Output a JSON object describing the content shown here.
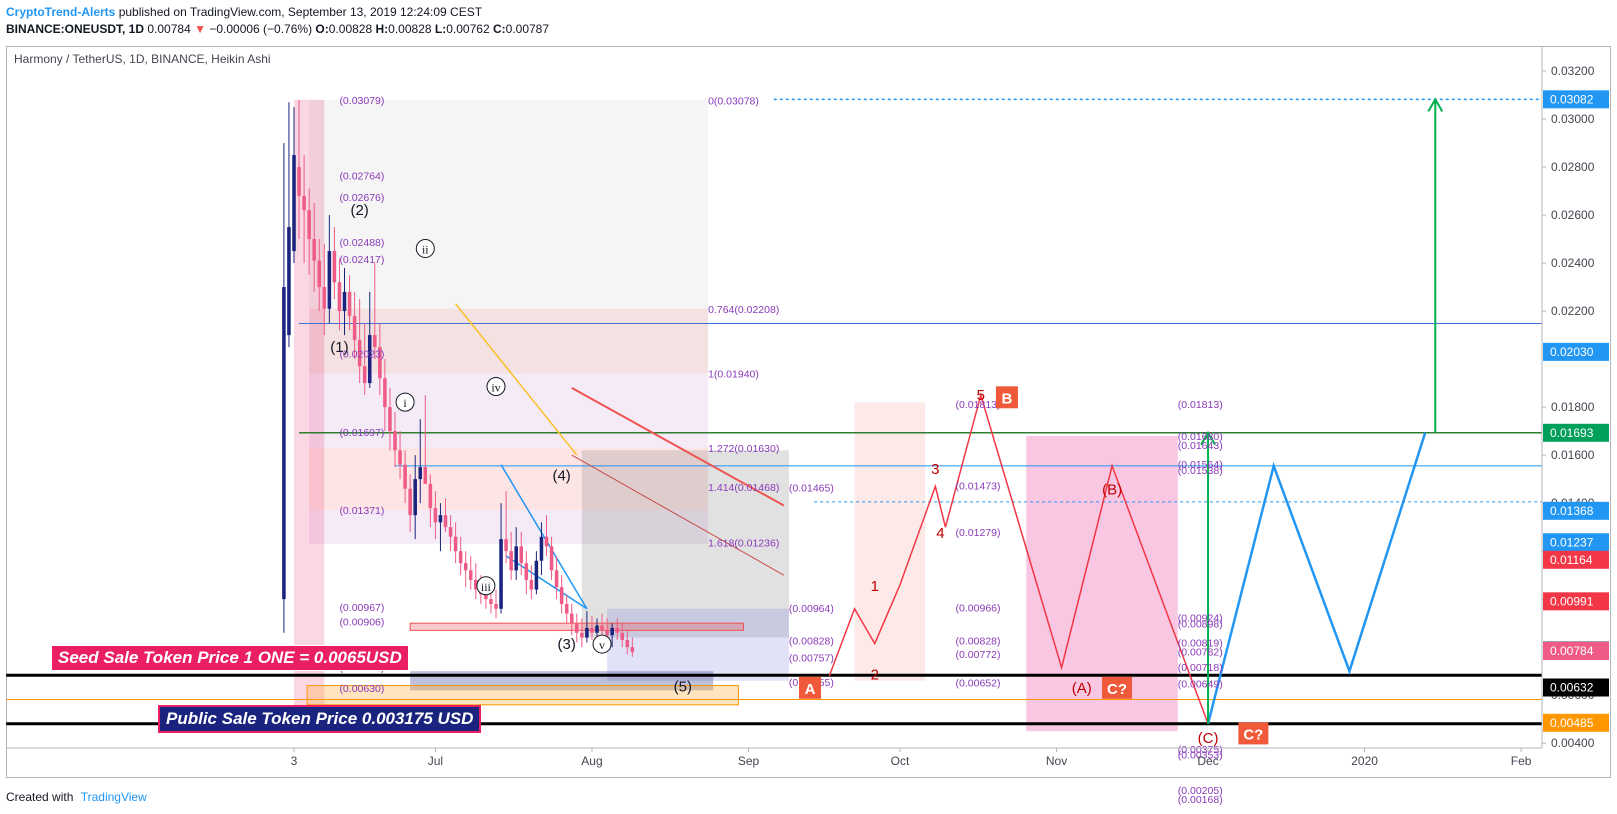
{
  "header": {
    "author": "CryptoTrend-Alerts",
    "published": "published on TradingView.com, September 13, 2019 12:24:09 CEST",
    "symbol": "BINANCE:ONEUSDT, 1D",
    "last": "0.00784",
    "change": "−0.00006 (−0.76%)",
    "ohlc": {
      "o_label": "O:",
      "o": "0.00828",
      "h_label": "H:",
      "h": "0.00828",
      "l_label": "L:",
      "l": "0.00762",
      "c_label": "C:",
      "c": "0.00787"
    }
  },
  "legend": {
    "title": "Harmony / TetherUS, 1D, BINANCE, Heikin Ashi"
  },
  "footer": {
    "created_with": "Created with",
    "brand": "TradingView"
  },
  "banners": {
    "seed": "Seed Sale Token Price 1 ONE = 0.0065USD",
    "public": "Public Sale Token Price 0.003175 USD"
  },
  "colors": {
    "up": "#1a237e",
    "down": "#ef5b86",
    "projection_red": "#f23645",
    "projection_blue": "#2196f3",
    "projection_green": "#00b050",
    "fib_pink": "#e91e8c"
  },
  "chart_data": {
    "type": "candlestick",
    "title": "Harmony / TetherUS, 1D, BINANCE, Heikin Ashi",
    "yaxis": {
      "ticks": [
        "0.03200",
        "0.03000",
        "0.02800",
        "0.02600",
        "0.02400",
        "0.02200",
        "0.01800",
        "0.01600",
        "0.01400",
        "0.01200",
        "0.01000",
        "0.00800",
        "0.00600",
        "0.00400"
      ],
      "ylim": [
        0.0038,
        0.033
      ],
      "price_labels": [
        {
          "text": "0.03082",
          "v": 0.03082,
          "bg": "#2196f3"
        },
        {
          "text": "0.02030",
          "v": 0.0203,
          "bg": "#2196f3"
        },
        {
          "text": "0.01693",
          "v": 0.01693,
          "bg": "#00a05a"
        },
        {
          "text": "0.01368",
          "v": 0.01368,
          "bg": "#2196f3"
        },
        {
          "text": "0.01237",
          "v": 0.01237,
          "bg": "#2196f3"
        },
        {
          "text": "0.01164",
          "v": 0.01164,
          "bg": "#f23645"
        },
        {
          "text": "0.00991",
          "v": 0.00991,
          "bg": "#f23645"
        },
        {
          "text": "0.00787",
          "v": 0.00787,
          "bg": "#787b86"
        },
        {
          "text": "0.00784",
          "v": 0.00784,
          "bg": "#ef5b86"
        },
        {
          "text": "0.00632",
          "v": 0.00632,
          "bg": "#000000"
        },
        {
          "text": "0.00485",
          "v": 0.00485,
          "bg": "#ff9800"
        }
      ]
    },
    "xaxis": {
      "ticks": [
        {
          "label": "3",
          "d": 0
        },
        {
          "label": "Jul",
          "d": 28
        },
        {
          "label": "Aug",
          "d": 59
        },
        {
          "label": "Sep",
          "d": 90
        },
        {
          "label": "Oct",
          "d": 120
        },
        {
          "label": "Nov",
          "d": 151
        },
        {
          "label": "Dec",
          "d": 181
        },
        {
          "label": "2020",
          "d": 212
        },
        {
          "label": "Feb",
          "d": 243
        }
      ]
    },
    "hlines": [
      {
        "v": 0.01693,
        "color": "#2e7d32",
        "w": 1.5,
        "x0": 1,
        "x1": 251
      },
      {
        "v": 0.02148,
        "color": "#3f6fd8",
        "w": 1,
        "x0": 1,
        "x1": 251
      },
      {
        "v": 0.01555,
        "color": "#2196f3",
        "w": 1,
        "x0": 20,
        "x1": 251
      },
      {
        "v": 0.01405,
        "color": "#2196f3",
        "w": 1,
        "x0": 103,
        "x1": 251,
        "dash": true
      },
      {
        "v": 0.00683,
        "color": "#000000",
        "w": 3,
        "x0": -57,
        "x1": 251
      },
      {
        "v": 0.00582,
        "color": "#ff9800",
        "w": 1,
        "x0": -57,
        "x1": 251
      },
      {
        "v": 0.00481,
        "color": "#000000",
        "w": 3,
        "x0": -57,
        "x1": 251
      },
      {
        "v": 0.03082,
        "color": "#2196f3",
        "w": 1.5,
        "x0": 95,
        "x1": 251,
        "dash": true
      }
    ],
    "fib_labels": [
      {
        "text": "(0.03079)",
        "v": 0.03079,
        "d": 9
      },
      {
        "text": "(0.02764)",
        "v": 0.02764,
        "d": 9
      },
      {
        "text": "(0.02676)",
        "v": 0.02676,
        "d": 9
      },
      {
        "text": "(0.02488)",
        "v": 0.02488,
        "d": 9
      },
      {
        "text": "(0.02417)",
        "v": 0.02417,
        "d": 9
      },
      {
        "text": "(0.02023)",
        "v": 0.02023,
        "d": 9
      },
      {
        "text": "(0.01697)",
        "v": 0.01697,
        "d": 9
      },
      {
        "text": "(0.01371)",
        "v": 0.01371,
        "d": 9
      },
      {
        "text": "(0.00967)",
        "v": 0.00967,
        "d": 9
      },
      {
        "text": "(0.00906)",
        "v": 0.00906,
        "d": 9
      },
      {
        "text": "(0.00718)",
        "v": 0.00718,
        "d": 9
      },
      {
        "text": "(0.00630)",
        "v": 0.0063,
        "d": 9
      },
      {
        "text": "0(0.03078)",
        "v": 0.03078,
        "d": 82
      },
      {
        "text": "0.764(0.02208)",
        "v": 0.02208,
        "d": 82
      },
      {
        "text": "1(0.01940)",
        "v": 0.0194,
        "d": 82
      },
      {
        "text": "1.272(0.01630)",
        "v": 0.0163,
        "d": 82
      },
      {
        "text": "1.414(0.01468)",
        "v": 0.01468,
        "d": 82
      },
      {
        "text": "(0.01465)",
        "v": 0.01465,
        "d": 98
      },
      {
        "text": "1.618(0.01236)",
        "v": 0.01236,
        "d": 82
      },
      {
        "text": "(0.00964)",
        "v": 0.00964,
        "d": 98
      },
      {
        "text": "(0.00828)",
        "v": 0.00828,
        "d": 98
      },
      {
        "text": "(0.00757)",
        "v": 0.00757,
        "d": 98
      },
      {
        "text": "(0.00655)",
        "v": 0.00655,
        "d": 98
      },
      {
        "text": "(0.01813)",
        "v": 0.01813,
        "d": 131
      },
      {
        "text": "(0.01473)",
        "v": 0.01473,
        "d": 131
      },
      {
        "text": "(0.01279)",
        "v": 0.01279,
        "d": 131
      },
      {
        "text": "(0.00966)",
        "v": 0.00966,
        "d": 131
      },
      {
        "text": "(0.00828)",
        "v": 0.00828,
        "d": 131
      },
      {
        "text": "(0.00772)",
        "v": 0.00772,
        "d": 131
      },
      {
        "text": "(0.00652)",
        "v": 0.00652,
        "d": 131
      },
      {
        "text": "(0.01813)",
        "v": 0.01813,
        "d": 175
      },
      {
        "text": "(0.01680)",
        "v": 0.0168,
        "d": 175
      },
      {
        "text": "(0.01643)",
        "v": 0.01643,
        "d": 175
      },
      {
        "text": "(0.01564)",
        "v": 0.01564,
        "d": 175
      },
      {
        "text": "(0.01538)",
        "v": 0.01538,
        "d": 175
      },
      {
        "text": "(0.00924)",
        "v": 0.00924,
        "d": 175
      },
      {
        "text": "(0.00898)",
        "v": 0.00898,
        "d": 175
      },
      {
        "text": "(0.00819)",
        "v": 0.00819,
        "d": 175
      },
      {
        "text": "(0.00782)",
        "v": 0.00782,
        "d": 175
      },
      {
        "text": "(0.00718)",
        "v": 0.00718,
        "d": 175
      },
      {
        "text": "(0.00649)",
        "v": 0.00649,
        "d": 175
      },
      {
        "text": "(0.00375)",
        "v": 0.00375,
        "d": 175
      },
      {
        "text": "(0.00353)",
        "v": 0.00353,
        "d": 175
      },
      {
        "text": "(0.00205)",
        "v": 0.00205,
        "d": 175
      },
      {
        "text": "(0.00168)",
        "v": 0.00168,
        "d": 175
      }
    ],
    "wave_labels": [
      {
        "text": "(1)",
        "d": 9,
        "v": 0.0203,
        "color": "#131722"
      },
      {
        "text": "(2)",
        "d": 13,
        "v": 0.026,
        "color": "#131722"
      },
      {
        "text": "(4)",
        "d": 53,
        "v": 0.01495,
        "color": "#131722"
      },
      {
        "text": "(3)",
        "d": 54,
        "v": 0.00792,
        "color": "#131722"
      },
      {
        "text": "(5)",
        "d": 77,
        "v": 0.00615,
        "color": "#131722"
      },
      {
        "text": "1",
        "d": 115,
        "v": 0.01035,
        "color": "#c00000"
      },
      {
        "text": "2",
        "d": 115,
        "v": 0.00665,
        "color": "#c00000"
      },
      {
        "text": "3",
        "d": 127,
        "v": 0.01522,
        "color": "#c00000"
      },
      {
        "text": "4",
        "d": 128,
        "v": 0.01255,
        "color": "#c00000"
      },
      {
        "text": "5",
        "d": 136,
        "v": 0.0183,
        "color": "#c00000"
      },
      {
        "text": "(B)",
        "d": 162,
        "v": 0.01435,
        "color": "#c00000"
      },
      {
        "text": "(A)",
        "d": 156,
        "v": 0.0061,
        "color": "#c00000"
      },
      {
        "text": "(C)",
        "d": 181,
        "v": 0.004,
        "color": "#c00000"
      }
    ],
    "circled_labels": [
      {
        "text": "i",
        "d": 22,
        "v": 0.018
      },
      {
        "text": "ii",
        "d": 26,
        "v": 0.0244
      },
      {
        "text": "iii",
        "d": 38,
        "v": 0.01035
      },
      {
        "text": "iv",
        "d": 40,
        "v": 0.01865
      },
      {
        "text": "v",
        "d": 61,
        "v": 0.00792
      }
    ],
    "box_labels": [
      {
        "text": "A",
        "d": 100,
        "v": 0.0061,
        "bg": "#f05a3a"
      },
      {
        "text": "B",
        "d": 139,
        "v": 0.0182,
        "bg": "#f05a3a"
      },
      {
        "text": "C?",
        "d": 160,
        "v": 0.0061,
        "bg": "#f05a3a"
      },
      {
        "text": "C?",
        "d": 187,
        "v": 0.0042,
        "bg": "#f05a3a"
      }
    ],
    "projection_red": [
      [
        106,
        0.0068
      ],
      [
        111,
        0.0096
      ],
      [
        115,
        0.00815
      ],
      [
        120,
        0.0106
      ],
      [
        127,
        0.0147
      ],
      [
        129,
        0.013
      ],
      [
        136,
        0.0185
      ],
      [
        152,
        0.00715
      ],
      [
        162,
        0.01555
      ],
      [
        181,
        0.00481
      ]
    ],
    "projection_blue": [
      [
        181,
        0.00481
      ],
      [
        194,
        0.01555
      ],
      [
        209,
        0.007
      ],
      [
        224,
        0.01693
      ]
    ],
    "projection_green_arrows": [
      [
        181,
        0.00481,
        0.01693
      ],
      [
        226,
        0.01693,
        0.03082
      ]
    ],
    "candles_note": "Heikin Ashi daily candles, ONE/USDT, Jun 1 – Sep 13 2019",
    "candles": [
      {
        "o": 0.01,
        "h": 0.029,
        "l": 0.0086,
        "c": 0.023
      },
      {
        "o": 0.021,
        "h": 0.0307,
        "l": 0.0205,
        "c": 0.0255
      },
      {
        "o": 0.0245,
        "h": 0.0305,
        "l": 0.024,
        "c": 0.0285
      },
      {
        "o": 0.028,
        "h": 0.0308,
        "l": 0.025,
        "c": 0.0268
      },
      {
        "o": 0.0268,
        "h": 0.0285,
        "l": 0.024,
        "c": 0.0262
      },
      {
        "o": 0.0262,
        "h": 0.0271,
        "l": 0.0235,
        "c": 0.025
      },
      {
        "o": 0.025,
        "h": 0.0265,
        "l": 0.0228,
        "c": 0.0241
      },
      {
        "o": 0.0241,
        "h": 0.025,
        "l": 0.022,
        "c": 0.023
      },
      {
        "o": 0.023,
        "h": 0.0248,
        "l": 0.021,
        "c": 0.0221
      },
      {
        "o": 0.0221,
        "h": 0.026,
        "l": 0.0215,
        "c": 0.0245
      },
      {
        "o": 0.0245,
        "h": 0.0255,
        "l": 0.0225,
        "c": 0.0232
      },
      {
        "o": 0.0232,
        "h": 0.0242,
        "l": 0.0212,
        "c": 0.022
      },
      {
        "o": 0.022,
        "h": 0.0238,
        "l": 0.021,
        "c": 0.0228
      },
      {
        "o": 0.0228,
        "h": 0.0235,
        "l": 0.0212,
        "c": 0.0218
      },
      {
        "o": 0.0218,
        "h": 0.0228,
        "l": 0.02,
        "c": 0.0208
      },
      {
        "o": 0.0208,
        "h": 0.0225,
        "l": 0.019,
        "c": 0.0197
      },
      {
        "o": 0.0197,
        "h": 0.0215,
        "l": 0.0185,
        "c": 0.019
      },
      {
        "o": 0.019,
        "h": 0.0228,
        "l": 0.0188,
        "c": 0.021
      },
      {
        "o": 0.021,
        "h": 0.024,
        "l": 0.02,
        "c": 0.0205
      },
      {
        "o": 0.0205,
        "h": 0.0215,
        "l": 0.0185,
        "c": 0.0192
      },
      {
        "o": 0.0192,
        "h": 0.02,
        "l": 0.017,
        "c": 0.018
      },
      {
        "o": 0.018,
        "h": 0.0188,
        "l": 0.0162,
        "c": 0.017
      },
      {
        "o": 0.017,
        "h": 0.0178,
        "l": 0.0155,
        "c": 0.0162
      },
      {
        "o": 0.0162,
        "h": 0.017,
        "l": 0.015,
        "c": 0.0156
      },
      {
        "o": 0.0156,
        "h": 0.0162,
        "l": 0.014,
        "c": 0.0146
      },
      {
        "o": 0.0146,
        "h": 0.0152,
        "l": 0.0128,
        "c": 0.0135
      },
      {
        "o": 0.0135,
        "h": 0.016,
        "l": 0.0125,
        "c": 0.015
      },
      {
        "o": 0.015,
        "h": 0.0175,
        "l": 0.014,
        "c": 0.0155
      },
      {
        "o": 0.0155,
        "h": 0.0185,
        "l": 0.015,
        "c": 0.0148
      },
      {
        "o": 0.0148,
        "h": 0.0152,
        "l": 0.013,
        "c": 0.0138
      },
      {
        "o": 0.0138,
        "h": 0.0145,
        "l": 0.0125,
        "c": 0.0132
      },
      {
        "o": 0.0132,
        "h": 0.014,
        "l": 0.012,
        "c": 0.0135
      },
      {
        "o": 0.0135,
        "h": 0.0142,
        "l": 0.0128,
        "c": 0.013
      },
      {
        "o": 0.013,
        "h": 0.0135,
        "l": 0.012,
        "c": 0.0126
      },
      {
        "o": 0.0126,
        "h": 0.0132,
        "l": 0.0115,
        "c": 0.012
      },
      {
        "o": 0.012,
        "h": 0.0126,
        "l": 0.011,
        "c": 0.0115
      },
      {
        "o": 0.0115,
        "h": 0.012,
        "l": 0.0105,
        "c": 0.0112
      },
      {
        "o": 0.0112,
        "h": 0.0118,
        "l": 0.0104,
        "c": 0.0108
      },
      {
        "o": 0.0108,
        "h": 0.0115,
        "l": 0.01,
        "c": 0.0104
      },
      {
        "o": 0.0104,
        "h": 0.011,
        "l": 0.0098,
        "c": 0.0102
      },
      {
        "o": 0.0102,
        "h": 0.0108,
        "l": 0.0096,
        "c": 0.01
      },
      {
        "o": 0.01,
        "h": 0.0105,
        "l": 0.0094,
        "c": 0.0098
      },
      {
        "o": 0.0098,
        "h": 0.0104,
        "l": 0.0092,
        "c": 0.0096
      },
      {
        "o": 0.0096,
        "h": 0.014,
        "l": 0.0094,
        "c": 0.0125
      },
      {
        "o": 0.0125,
        "h": 0.0145,
        "l": 0.0115,
        "c": 0.012
      },
      {
        "o": 0.012,
        "h": 0.0128,
        "l": 0.0108,
        "c": 0.0112
      },
      {
        "o": 0.0112,
        "h": 0.013,
        "l": 0.0108,
        "c": 0.0122
      },
      {
        "o": 0.0122,
        "h": 0.0128,
        "l": 0.011,
        "c": 0.0115
      },
      {
        "o": 0.0115,
        "h": 0.012,
        "l": 0.0102,
        "c": 0.0108
      },
      {
        "o": 0.0108,
        "h": 0.0114,
        "l": 0.01,
        "c": 0.0104
      },
      {
        "o": 0.0104,
        "h": 0.012,
        "l": 0.0102,
        "c": 0.0116
      },
      {
        "o": 0.0116,
        "h": 0.0132,
        "l": 0.011,
        "c": 0.0126
      },
      {
        "o": 0.0126,
        "h": 0.0135,
        "l": 0.0118,
        "c": 0.0122
      },
      {
        "o": 0.0122,
        "h": 0.0126,
        "l": 0.0108,
        "c": 0.0112
      },
      {
        "o": 0.0112,
        "h": 0.0118,
        "l": 0.01,
        "c": 0.0105
      },
      {
        "o": 0.0105,
        "h": 0.011,
        "l": 0.0094,
        "c": 0.0098
      },
      {
        "o": 0.0098,
        "h": 0.0102,
        "l": 0.009,
        "c": 0.0094
      },
      {
        "o": 0.0094,
        "h": 0.0098,
        "l": 0.0085,
        "c": 0.009
      },
      {
        "o": 0.009,
        "h": 0.0094,
        "l": 0.0082,
        "c": 0.0086
      },
      {
        "o": 0.0086,
        "h": 0.0092,
        "l": 0.008,
        "c": 0.0084
      },
      {
        "o": 0.0084,
        "h": 0.0095,
        "l": 0.0082,
        "c": 0.0088
      },
      {
        "o": 0.0088,
        "h": 0.0093,
        "l": 0.0083,
        "c": 0.0086
      },
      {
        "o": 0.0086,
        "h": 0.0092,
        "l": 0.0082,
        "c": 0.0089
      },
      {
        "o": 0.0089,
        "h": 0.0094,
        "l": 0.0084,
        "c": 0.0087
      },
      {
        "o": 0.0087,
        "h": 0.0092,
        "l": 0.0081,
        "c": 0.0085
      },
      {
        "o": 0.0085,
        "h": 0.009,
        "l": 0.008,
        "c": 0.0088
      },
      {
        "o": 0.0088,
        "h": 0.0092,
        "l": 0.0083,
        "c": 0.0086
      },
      {
        "o": 0.0086,
        "h": 0.009,
        "l": 0.008,
        "c": 0.0083
      },
      {
        "o": 0.0083,
        "h": 0.0087,
        "l": 0.0077,
        "c": 0.008
      },
      {
        "o": 0.008,
        "h": 0.0084,
        "l": 0.0076,
        "c": 0.0078
      }
    ]
  }
}
